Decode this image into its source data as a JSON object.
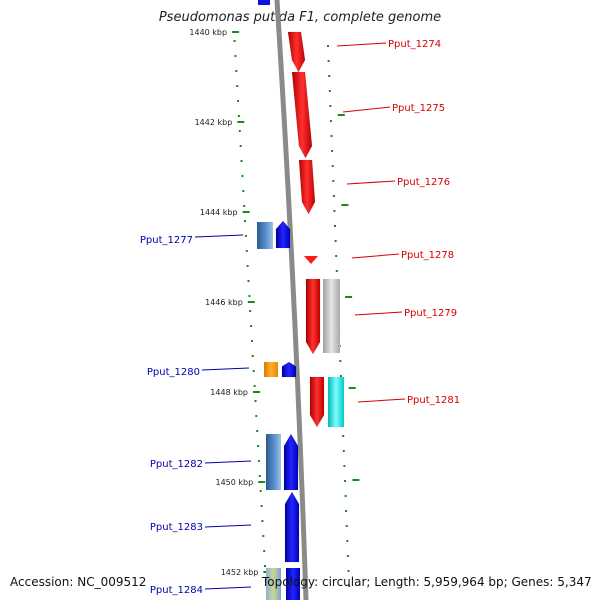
{
  "header": {
    "title": "Pseudomonas putida F1, complete genome"
  },
  "footer": {
    "accession": "Accession: NC_009512",
    "topology": "Topology: circular; Length: 5,959,964 bp; Genes: 5,347"
  },
  "colors": {
    "backbone": "#8a8a8a",
    "tick": "#1a8a1a",
    "label_forward": "#d40000",
    "label_reverse": "#0000b0"
  },
  "position_labels": [
    "1440 kbp",
    "1442 kbp",
    "1444 kbp",
    "1446 kbp",
    "1448 kbp",
    "1450 kbp",
    "1452 kbp"
  ],
  "genes": [
    {
      "id": "Pput_1274",
      "strand": "forward",
      "color": "#ff1a1a"
    },
    {
      "id": "Pput_1275",
      "strand": "forward",
      "color": "#ff1a1a"
    },
    {
      "id": "Pput_1276",
      "strand": "forward",
      "color": "#ff1a1a"
    },
    {
      "id": "Pput_1277",
      "strand": "reverse",
      "color": "#3a6fc0"
    },
    {
      "id": "Pput_1278",
      "strand": "forward",
      "color": "#ff1a1a"
    },
    {
      "id": "Pput_1279",
      "strand": "forward",
      "color": "#ff1a1a"
    },
    {
      "id": "Pput_1280",
      "strand": "reverse",
      "color": "#ff9900"
    },
    {
      "id": "Pput_1281",
      "strand": "forward",
      "color": "#ff1a1a"
    },
    {
      "id": "Pput_1282",
      "strand": "reverse",
      "color": "#3a6fc0"
    },
    {
      "id": "Pput_1283",
      "strand": "reverse",
      "color": "#1010e0"
    },
    {
      "id": "Pput_1284",
      "strand": "reverse",
      "color": "#1010e0"
    }
  ]
}
